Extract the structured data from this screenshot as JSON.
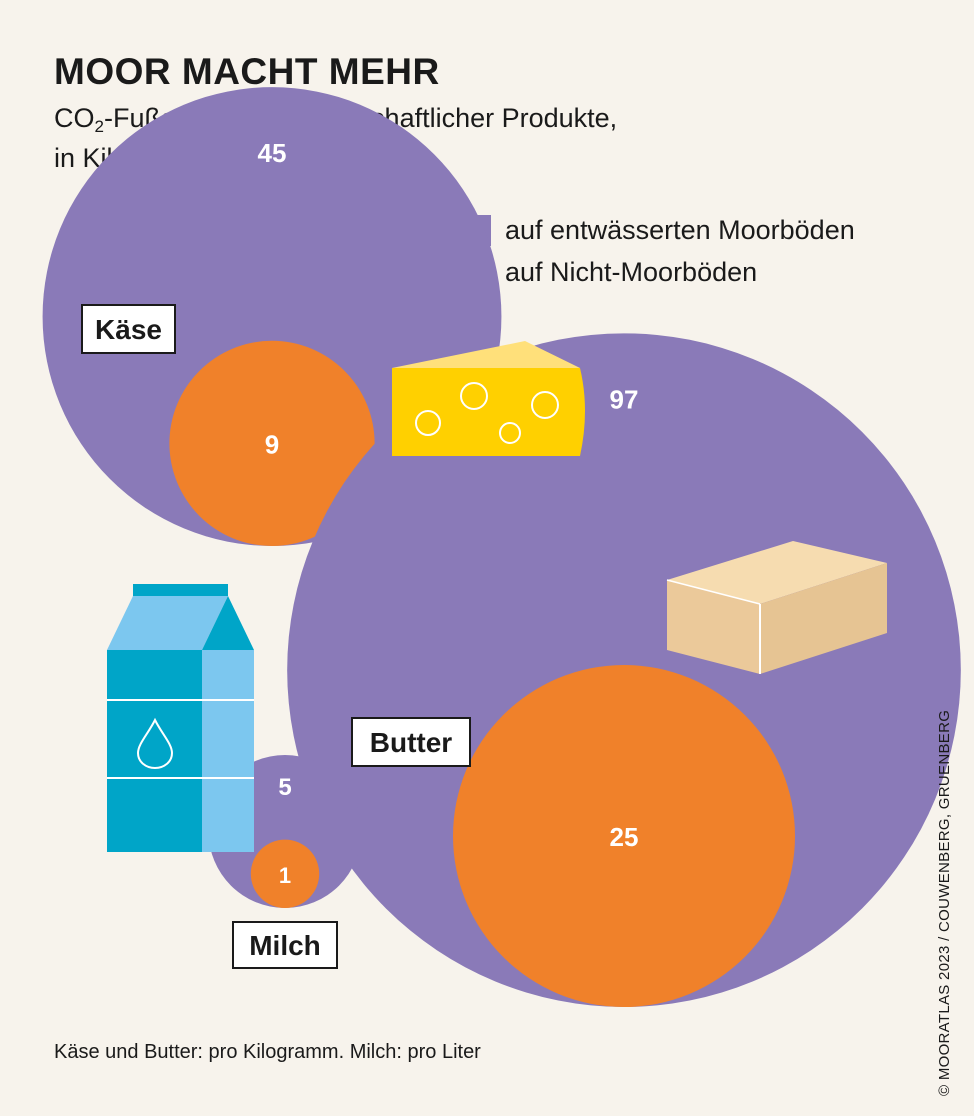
{
  "title": "MOOR MACHT MEHR",
  "subtitle_pre": "CO",
  "subtitle_sub": "2",
  "subtitle_post": "-Fußabdruck landwirtschaftlicher Produkte,",
  "subtitle_line2": "in Kilogramm",
  "legend": [
    {
      "label": "auf entwässerten Moorböden",
      "color": "#8a7ab8"
    },
    {
      "label": "auf Nicht-Moorböden",
      "color": "#f0812a"
    }
  ],
  "footnote": "Käse und Butter: pro Kilogramm. Milch: pro Liter",
  "credit": "© MOORATLAS 2023 / COUWENBERG, GRUENBERG",
  "chart_data": {
    "type": "bubble",
    "categories": [
      "Käse",
      "Butter",
      "Milch"
    ],
    "series": [
      {
        "name": "auf entwässerten Moorböden",
        "values": [
          45,
          97,
          5
        ],
        "color": "#8a7ab8"
      },
      {
        "name": "auf Nicht-Moorböden",
        "values": [
          9,
          25,
          1
        ],
        "color": "#f0812a"
      }
    ],
    "icons": [
      "cheese-icon",
      "butter-icon",
      "milk-carton-icon"
    ]
  }
}
